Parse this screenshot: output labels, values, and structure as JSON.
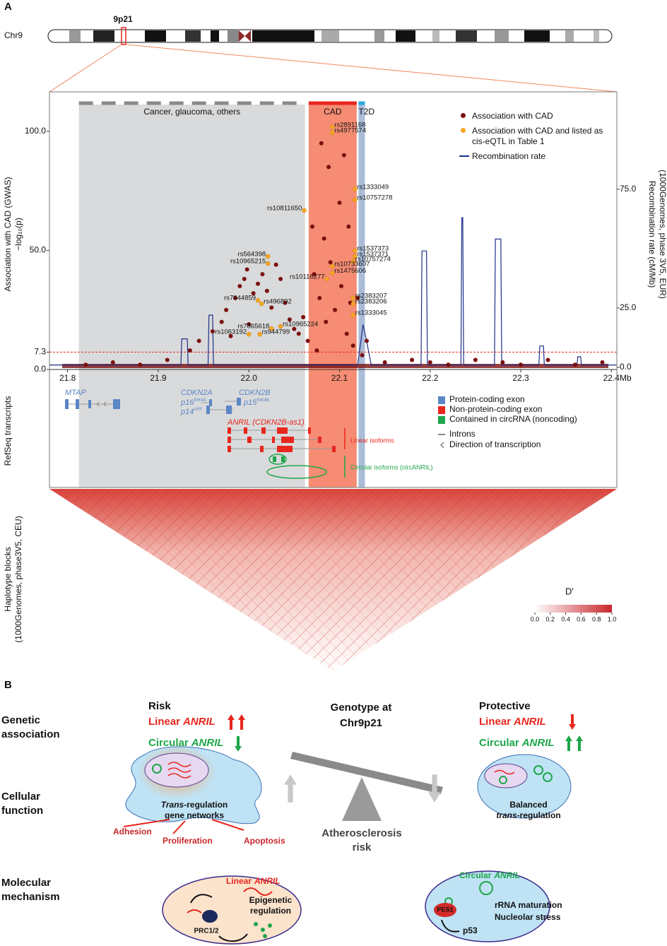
{
  "panel_a": {
    "label": "A",
    "chromosome": "Chr9",
    "band": "9p21",
    "transcripts": {
      "ylabel": "RefSeq transcripts",
      "genes": [
        "MTAP",
        "CDKN2A",
        "CDKN2B"
      ],
      "isoforms": [
        {
          "name": "p16",
          "sup": "INK4A"
        },
        {
          "name": "p14",
          "sup": "ARF"
        },
        {
          "name": "p15",
          "sup": "INK4B"
        }
      ],
      "anril": "ANRIL (CDKN2B-as1)",
      "linear_label": "Linear isoforms",
      "circular_label": "Circular isoforms (circANRIL)",
      "legend": [
        {
          "label": "Protein-coding exon",
          "color": "#5b86c5"
        },
        {
          "label": "Non-protein-coding exon",
          "color": "#e8261e"
        },
        {
          "label": "Contained in circRNA (noncoding)",
          "color": "#1ea64a"
        },
        {
          "label": "Introns"
        },
        {
          "label": "Direction of transcription"
        }
      ]
    },
    "haplotype": {
      "ylabel": [
        "Haplotype blocks",
        "(1000Genomes, phase3V5, CEU)"
      ],
      "colorbar_title": "D'",
      "colorbar_ticks": [
        {
          "value": 0,
          "label": "0.0"
        },
        {
          "value": 0.2,
          "label": "0.2"
        },
        {
          "value": 0.4,
          "label": "0.4"
        },
        {
          "value": 0.6,
          "label": "0.6"
        },
        {
          "value": 0.8,
          "label": "0.8"
        },
        {
          "value": 1,
          "label": "1.0"
        }
      ]
    }
  },
  "chart_data": {
    "type": "scatter",
    "ylabel": [
      "Association with CAD (GWAS)",
      "−log₁₀(p)"
    ],
    "y2label": [
      "Recombination rate (cM/Mb)",
      "(1000Genomes, phase 3V5, EUR)"
    ],
    "xlabel": "Mb",
    "xlim": [
      21.78,
      22.406
    ],
    "xticks": [
      21.8,
      21.9,
      {
        "value": 22,
        "label": "22.0"
      },
      22.1,
      22.2,
      22.3,
      22.4
    ],
    "ylim": [
      0,
      113.6
    ],
    "yticks": [
      {
        "value": 0,
        "label": "0.0"
      },
      7.3,
      {
        "value": 50,
        "label": "50.0"
      },
      {
        "value": 100,
        "label": "100.0"
      }
    ],
    "y2lim": [
      -0.9,
      113
    ],
    "y2ticks": [
      {
        "value": 0,
        "label": "0.0"
      },
      {
        "value": 25,
        "label": "25.0"
      },
      {
        "value": 75,
        "label": "75.0"
      }
    ],
    "threshold": 7.3,
    "regions": [
      {
        "label": "Cancer, glaucoma, others",
        "start": 21.8125,
        "end": 22.062,
        "color": "#d9dadb",
        "bar": "#8a8a8a"
      },
      {
        "label": "CAD",
        "start": 22.066,
        "end": 22.119,
        "color": "#f58c73",
        "bar": "#e8261e"
      },
      {
        "label": "T2D",
        "start": 22.121,
        "end": 22.128,
        "color": "#a9bcd8",
        "bar": "#29a8e0"
      }
    ],
    "series": [
      {
        "name": "Association with CAD",
        "color": "#7a0f0f",
        "x": [
          21.82,
          21.85,
          21.88,
          21.91,
          21.935,
          21.945,
          21.96,
          21.97,
          21.975,
          21.98,
          21.985,
          21.99,
          21.995,
          21.998,
          22.0,
          22.005,
          22.01,
          22.015,
          22.02,
          22.025,
          22.03,
          22.035,
          22.04,
          22.045,
          22.05,
          22.055,
          22.06,
          22.065,
          22.07,
          22.072,
          22.075,
          22.078,
          22.08,
          22.083,
          22.085,
          22.088,
          22.09,
          22.095,
          22.1,
          22.102,
          22.105,
          22.108,
          22.11,
          22.112,
          22.115,
          22.12,
          22.125,
          22.13,
          22.15,
          22.18,
          22.2,
          22.22,
          22.25,
          22.28,
          22.3,
          22.33,
          22.36,
          22.39
        ],
        "values": [
          2,
          3,
          2,
          4,
          8,
          12,
          16,
          20,
          25,
          14,
          30,
          35,
          38,
          42,
          19,
          32,
          36,
          40,
          33,
          26,
          44,
          38,
          28,
          21,
          17,
          15,
          22,
          12,
          60,
          40,
          8,
          30,
          95,
          55,
          20,
          85,
          45,
          25,
          70,
          35,
          90,
          15,
          60,
          28,
          10,
          30,
          6,
          12,
          3,
          4,
          3,
          2,
          4,
          3,
          2,
          4,
          2,
          3
        ]
      },
      {
        "name": "Association with CAD and listed as cis-eQTL in Table 1",
        "color": "#f5a623",
        "x": [
          22.092,
          22.092,
          22.117,
          22.117,
          22.061,
          22.117,
          22.117,
          22.115,
          22.092,
          22.092,
          22.086,
          22.115,
          22.115,
          22.115,
          22.021,
          22.021,
          22.01,
          22.014,
          22.025,
          22.0,
          22.012,
          22.035
        ],
        "values": [
          101.8,
          99.4,
          75.7,
          71.2,
          66.8,
          49.9,
          47.5,
          45.4,
          43.3,
          40.5,
          38,
          30,
          27.6,
          22.8,
          47.5,
          44.5,
          29,
          27.6,
          17.2,
          14.8,
          14.8,
          18.1
        ],
        "point_labels": [
          "rs2891168",
          "rs4977574",
          "rs1333049",
          "rs10757278",
          "rs10811650",
          "rs1537373",
          "rs1537371",
          "rs10757274",
          "rs10733607",
          "rs1475606",
          "rs10116277",
          "rs2383207",
          "rs2383206",
          "rs1333045",
          "rs564398",
          "rs10965215",
          "rs7044859",
          "rs496892",
          "rs7865618",
          "rs1063192",
          "rs944799",
          "rs10965224"
        ]
      },
      {
        "name": "Recombination rate",
        "type": "line",
        "axis": "y2",
        "color": "#1f2f8a",
        "x": [
          21.78,
          21.925,
          21.926,
          21.932,
          21.933,
          21.955,
          21.956,
          21.96,
          21.961,
          22.12,
          22.126,
          22.13,
          22.135,
          22.19,
          22.191,
          22.196,
          22.197,
          22.234,
          22.235,
          22.236,
          22.237,
          22.271,
          22.272,
          22.278,
          22.279,
          22.32,
          22.321,
          22.325,
          22.326,
          22.362,
          22.363,
          22.366,
          22.367,
          22.406
        ],
        "values": [
          1,
          1,
          12,
          12,
          1,
          1,
          22,
          22,
          1,
          1,
          18,
          11,
          1,
          1,
          49,
          49,
          1,
          1,
          63,
          63,
          1,
          1,
          54,
          54,
          1,
          1,
          9,
          9,
          1,
          1,
          4.5,
          4.5,
          1,
          1
        ]
      }
    ]
  },
  "panel_b": {
    "label": "B",
    "rows": [
      [
        "Genetic",
        "association"
      ],
      [
        "Cellular",
        "function"
      ],
      [
        "Molecular",
        "mechanism"
      ]
    ],
    "risk": {
      "heading": "Risk",
      "linear": [
        "Linear",
        "ANRIL"
      ],
      "circular": [
        "Circular",
        "ANRIL"
      ]
    },
    "genotype": [
      "Genotype at",
      "Chr9p21"
    ],
    "protective": {
      "heading": "Protective",
      "linear": [
        "Linear",
        "ANRIL"
      ],
      "circular": [
        "Circular",
        "ANRIL"
      ]
    },
    "risk_cell": {
      "regulation": [
        "Trans",
        "-regulation"
      ],
      "networks": "gene networks",
      "effects": [
        "Adhesion",
        "Proliferation",
        "Apoptosis"
      ]
    },
    "outcome": [
      "Atherosclerosis",
      "risk"
    ],
    "protective_cell": {
      "first": "Balanced",
      "second": [
        "trans",
        "-regulation"
      ]
    },
    "risk_mechanism": {
      "rna": [
        "Linear",
        "ANRIL"
      ],
      "process": [
        "Epigenetic",
        "regulation"
      ],
      "complex": "PRC1/2"
    },
    "protective_mechanism": {
      "rna": [
        "Circular",
        "ANRIL"
      ],
      "protein": "PES1",
      "process": [
        "rRNA maturation",
        "Nucleolar stress"
      ],
      "target": "p53"
    }
  }
}
